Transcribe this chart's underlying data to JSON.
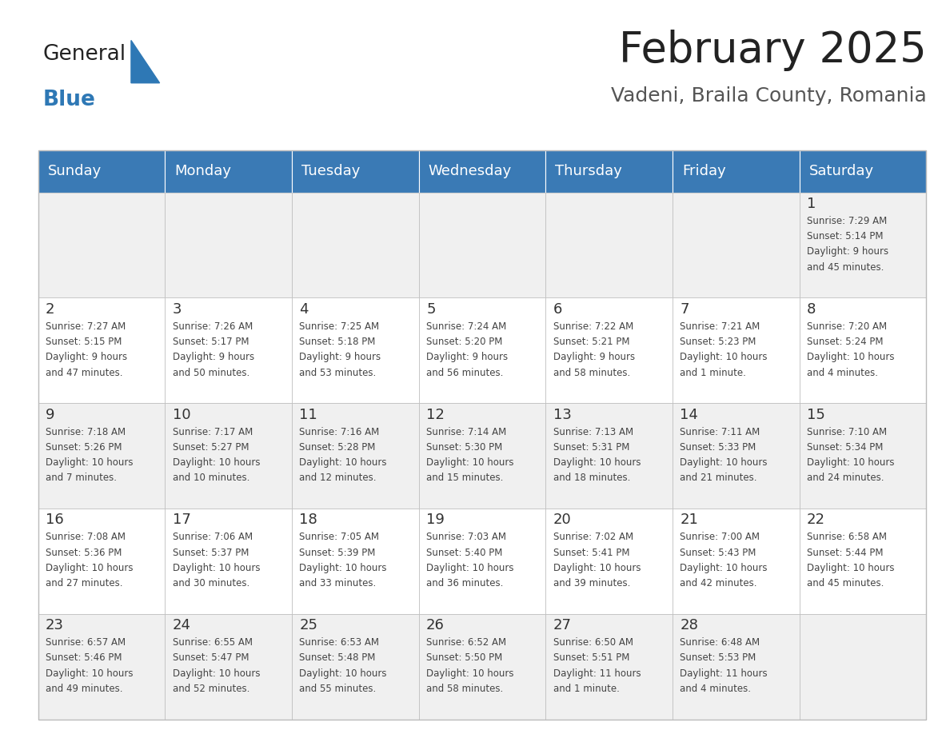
{
  "title": "February 2025",
  "subtitle": "Vadeni, Braila County, Romania",
  "days_of_week": [
    "Sunday",
    "Monday",
    "Tuesday",
    "Wednesday",
    "Thursday",
    "Friday",
    "Saturday"
  ],
  "header_bg_color": "#3A7AB5",
  "header_text_color": "#FFFFFF",
  "row_bg_even": "#F0F0F0",
  "row_bg_odd": "#FFFFFF",
  "cell_border_color": "#BBBBBB",
  "day_number_color": "#333333",
  "cell_text_color": "#444444",
  "title_color": "#222222",
  "subtitle_color": "#555555",
  "logo_general_color": "#222222",
  "logo_blue_color": "#2E78B5",
  "calendar_data": [
    [
      null,
      null,
      null,
      null,
      null,
      null,
      {
        "day": 1,
        "sunrise": "7:29 AM",
        "sunset": "5:14 PM",
        "daylight_a": "9 hours",
        "daylight_b": "and 45 minutes."
      }
    ],
    [
      {
        "day": 2,
        "sunrise": "7:27 AM",
        "sunset": "5:15 PM",
        "daylight_a": "9 hours",
        "daylight_b": "and 47 minutes."
      },
      {
        "day": 3,
        "sunrise": "7:26 AM",
        "sunset": "5:17 PM",
        "daylight_a": "9 hours",
        "daylight_b": "and 50 minutes."
      },
      {
        "day": 4,
        "sunrise": "7:25 AM",
        "sunset": "5:18 PM",
        "daylight_a": "9 hours",
        "daylight_b": "and 53 minutes."
      },
      {
        "day": 5,
        "sunrise": "7:24 AM",
        "sunset": "5:20 PM",
        "daylight_a": "9 hours",
        "daylight_b": "and 56 minutes."
      },
      {
        "day": 6,
        "sunrise": "7:22 AM",
        "sunset": "5:21 PM",
        "daylight_a": "9 hours",
        "daylight_b": "and 58 minutes."
      },
      {
        "day": 7,
        "sunrise": "7:21 AM",
        "sunset": "5:23 PM",
        "daylight_a": "10 hours",
        "daylight_b": "and 1 minute."
      },
      {
        "day": 8,
        "sunrise": "7:20 AM",
        "sunset": "5:24 PM",
        "daylight_a": "10 hours",
        "daylight_b": "and 4 minutes."
      }
    ],
    [
      {
        "day": 9,
        "sunrise": "7:18 AM",
        "sunset": "5:26 PM",
        "daylight_a": "10 hours",
        "daylight_b": "and 7 minutes."
      },
      {
        "day": 10,
        "sunrise": "7:17 AM",
        "sunset": "5:27 PM",
        "daylight_a": "10 hours",
        "daylight_b": "and 10 minutes."
      },
      {
        "day": 11,
        "sunrise": "7:16 AM",
        "sunset": "5:28 PM",
        "daylight_a": "10 hours",
        "daylight_b": "and 12 minutes."
      },
      {
        "day": 12,
        "sunrise": "7:14 AM",
        "sunset": "5:30 PM",
        "daylight_a": "10 hours",
        "daylight_b": "and 15 minutes."
      },
      {
        "day": 13,
        "sunrise": "7:13 AM",
        "sunset": "5:31 PM",
        "daylight_a": "10 hours",
        "daylight_b": "and 18 minutes."
      },
      {
        "day": 14,
        "sunrise": "7:11 AM",
        "sunset": "5:33 PM",
        "daylight_a": "10 hours",
        "daylight_b": "and 21 minutes."
      },
      {
        "day": 15,
        "sunrise": "7:10 AM",
        "sunset": "5:34 PM",
        "daylight_a": "10 hours",
        "daylight_b": "and 24 minutes."
      }
    ],
    [
      {
        "day": 16,
        "sunrise": "7:08 AM",
        "sunset": "5:36 PM",
        "daylight_a": "10 hours",
        "daylight_b": "and 27 minutes."
      },
      {
        "day": 17,
        "sunrise": "7:06 AM",
        "sunset": "5:37 PM",
        "daylight_a": "10 hours",
        "daylight_b": "and 30 minutes."
      },
      {
        "day": 18,
        "sunrise": "7:05 AM",
        "sunset": "5:39 PM",
        "daylight_a": "10 hours",
        "daylight_b": "and 33 minutes."
      },
      {
        "day": 19,
        "sunrise": "7:03 AM",
        "sunset": "5:40 PM",
        "daylight_a": "10 hours",
        "daylight_b": "and 36 minutes."
      },
      {
        "day": 20,
        "sunrise": "7:02 AM",
        "sunset": "5:41 PM",
        "daylight_a": "10 hours",
        "daylight_b": "and 39 minutes."
      },
      {
        "day": 21,
        "sunrise": "7:00 AM",
        "sunset": "5:43 PM",
        "daylight_a": "10 hours",
        "daylight_b": "and 42 minutes."
      },
      {
        "day": 22,
        "sunrise": "6:58 AM",
        "sunset": "5:44 PM",
        "daylight_a": "10 hours",
        "daylight_b": "and 45 minutes."
      }
    ],
    [
      {
        "day": 23,
        "sunrise": "6:57 AM",
        "sunset": "5:46 PM",
        "daylight_a": "10 hours",
        "daylight_b": "and 49 minutes."
      },
      {
        "day": 24,
        "sunrise": "6:55 AM",
        "sunset": "5:47 PM",
        "daylight_a": "10 hours",
        "daylight_b": "and 52 minutes."
      },
      {
        "day": 25,
        "sunrise": "6:53 AM",
        "sunset": "5:48 PM",
        "daylight_a": "10 hours",
        "daylight_b": "and 55 minutes."
      },
      {
        "day": 26,
        "sunrise": "6:52 AM",
        "sunset": "5:50 PM",
        "daylight_a": "10 hours",
        "daylight_b": "and 58 minutes."
      },
      {
        "day": 27,
        "sunrise": "6:50 AM",
        "sunset": "5:51 PM",
        "daylight_a": "11 hours",
        "daylight_b": "and 1 minute."
      },
      {
        "day": 28,
        "sunrise": "6:48 AM",
        "sunset": "5:53 PM",
        "daylight_a": "11 hours",
        "daylight_b": "and 4 minutes."
      },
      null
    ]
  ]
}
